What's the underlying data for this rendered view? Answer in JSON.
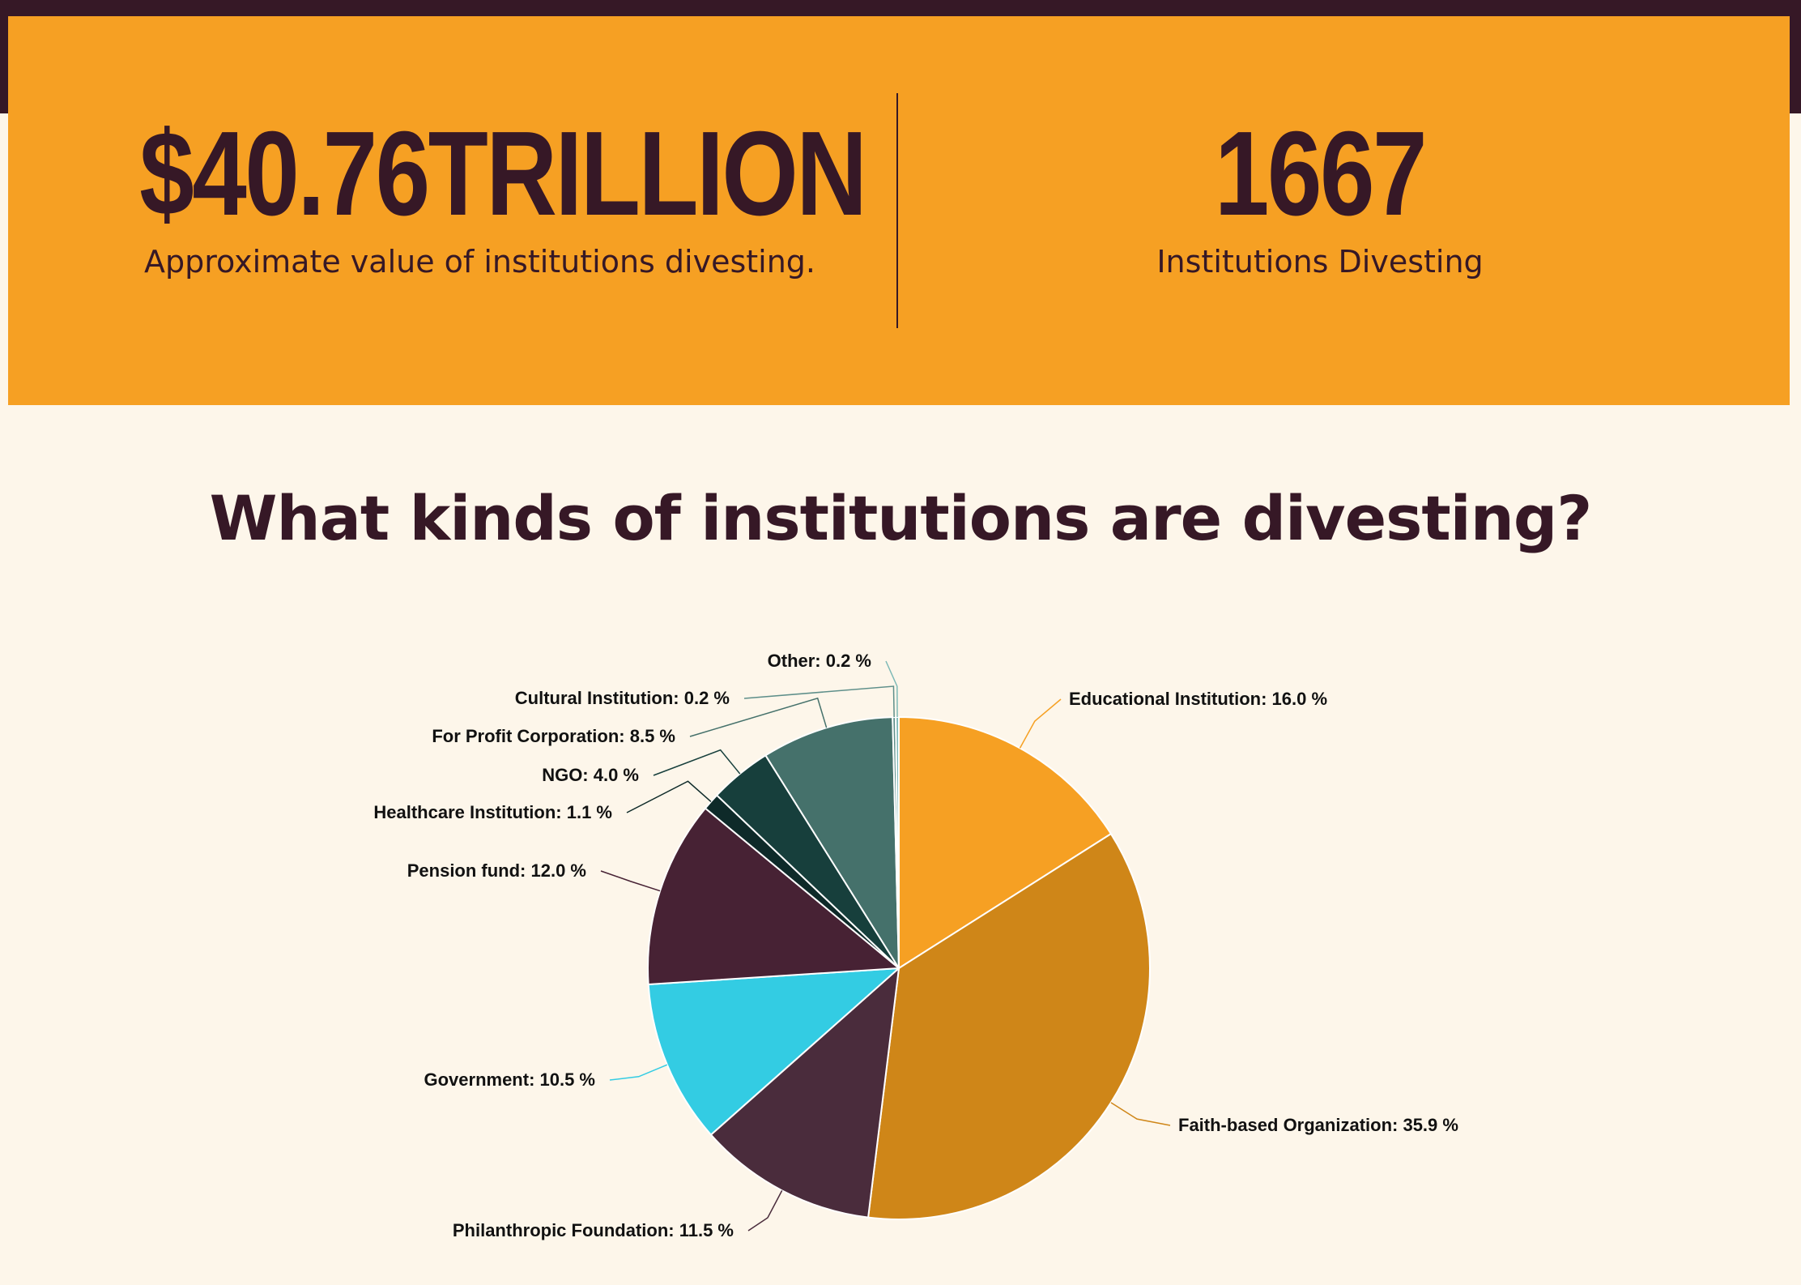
{
  "stats": {
    "value_amount": "$40.76TRILLION",
    "value_caption": "Approximate value of institutions divesting.",
    "count_amount": "1667",
    "count_caption": "Institutions Divesting"
  },
  "chart_section": {
    "heading": "What kinds of institutions are divesting?"
  },
  "chart_data": {
    "type": "pie",
    "title": "What kinds of institutions are divesting?",
    "unit": "%",
    "slices": [
      {
        "label": "Educational Institution",
        "value": 16.0,
        "text": "Educational Institution: 16.0 %",
        "color": "#f6a023"
      },
      {
        "label": "Faith-based Organization",
        "value": 35.9,
        "text": "Faith-based Organization: 35.9 %",
        "color": "#cf8618"
      },
      {
        "label": "Philanthropic Foundation",
        "value": 11.5,
        "text": "Philanthropic Foundation: 11.5 %",
        "color": "#4a2c3c"
      },
      {
        "label": "Government",
        "value": 10.5,
        "text": "Government: 10.5 %",
        "color": "#33cce3"
      },
      {
        "label": "Pension fund",
        "value": 12.0,
        "text": "Pension fund: 12.0 %",
        "color": "#472234"
      },
      {
        "label": "Healthcare Institution",
        "value": 1.1,
        "text": "Healthcare Institution: 1.1 %",
        "color": "#0e2a29"
      },
      {
        "label": "NGO",
        "value": 4.0,
        "text": "NGO: 4.0 %",
        "color": "#173f3c"
      },
      {
        "label": "For Profit Corporation",
        "value": 8.5,
        "text": "For Profit Corporation: 8.5 %",
        "color": "#45716b"
      },
      {
        "label": "Cultural Institution",
        "value": 0.2,
        "text": "Cultural Institution: 0.2 %",
        "color": "#5e8f8a"
      },
      {
        "label": "Other",
        "value": 0.2,
        "text": "Other: 0.2 %",
        "color": "#7db9b6"
      }
    ],
    "legend": "none",
    "labels": "outside-with-leader-lines"
  }
}
